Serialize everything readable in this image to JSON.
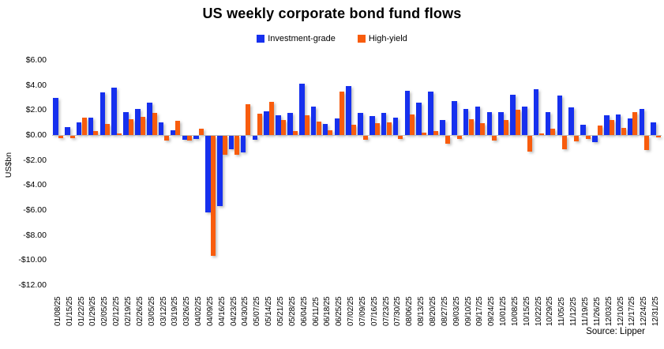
{
  "chart_data": {
    "type": "bar",
    "title": "US weekly corporate bond fund flows",
    "ylabel": "US$bn",
    "source": "Source: Lipper",
    "legend_position": "top",
    "grid": false,
    "ylim": [
      -12,
      6
    ],
    "ytick_step": 2,
    "yticks": [
      {
        "value": 6,
        "label": "$6.00"
      },
      {
        "value": 4,
        "label": "$4.00"
      },
      {
        "value": 2,
        "label": "$2.00"
      },
      {
        "value": 0,
        "label": "$0.00"
      },
      {
        "value": -2,
        "label": "-$2.00"
      },
      {
        "value": -4,
        "label": "-$4.00"
      },
      {
        "value": -6,
        "label": "-$6.00"
      },
      {
        "value": -8,
        "label": "-$8.00"
      },
      {
        "value": -10,
        "label": "-$10.00"
      },
      {
        "value": -12,
        "label": "-$12.00"
      }
    ],
    "categories": [
      "01/08/25",
      "01/15/25",
      "01/22/25",
      "01/29/25",
      "02/05/25",
      "02/12/25",
      "02/19/25",
      "02/26/25",
      "03/05/25",
      "03/12/25",
      "03/19/25",
      "03/26/25",
      "04/02/25",
      "04/09/25",
      "04/16/25",
      "04/23/25",
      "04/30/25",
      "05/07/25",
      "05/14/25",
      "05/21/25",
      "05/28/25",
      "06/04/25",
      "06/11/25",
      "06/18/25",
      "06/25/25",
      "07/02/25",
      "07/09/25",
      "07/16/25",
      "07/23/25",
      "07/30/25",
      "08/06/25",
      "08/13/25",
      "08/20/25",
      "08/27/25",
      "09/03/25",
      "09/10/25",
      "09/17/25",
      "09/24/25",
      "10/01/25",
      "10/08/25",
      "10/15/25",
      "10/22/25",
      "10/29/25",
      "11/05/25",
      "11/12/25",
      "11/19/25",
      "11/26/25",
      "12/03/25",
      "12/10/25",
      "12/17/25",
      "12/24/25",
      "12/31/25"
    ],
    "series": [
      {
        "name": "Investment-grade",
        "color": "#1630ee",
        "values": [
          3.0,
          0.65,
          1.0,
          1.4,
          3.4,
          3.8,
          1.85,
          2.1,
          2.6,
          1.0,
          0.4,
          -0.3,
          -0.25,
          -6.1,
          -5.6,
          -1.1,
          -1.3,
          -0.3,
          1.9,
          1.6,
          1.8,
          4.1,
          2.3,
          0.9,
          1.35,
          3.9,
          1.8,
          1.5,
          1.8,
          1.4,
          3.55,
          2.6,
          3.45,
          1.2,
          2.7,
          2.1,
          2.25,
          1.85,
          1.85,
          3.25,
          2.3,
          3.65,
          1.85,
          3.15,
          2.2,
          0.85,
          -0.5,
          1.6,
          1.65,
          1.35,
          2.1,
          1.0
        ]
      },
      {
        "name": "High-yield",
        "color": "#f85c0d",
        "values": [
          -0.2,
          -0.2,
          1.4,
          0.3,
          0.9,
          0.15,
          1.25,
          1.45,
          1.8,
          -0.35,
          1.15,
          -0.35,
          0.5,
          -9.6,
          -1.5,
          -1.5,
          2.45,
          1.7,
          2.65,
          1.2,
          0.3,
          1.55,
          1.1,
          0.4,
          3.45,
          0.85,
          -0.3,
          0.95,
          1.0,
          -0.25,
          1.65,
          0.2,
          0.3,
          -0.6,
          -0.25,
          1.25,
          0.95,
          -0.35,
          1.2,
          2.05,
          -1.25,
          0.15,
          0.5,
          -1.05,
          -0.45,
          -0.25,
          0.75,
          1.2,
          0.6,
          1.85,
          -1.15,
          -0.15
        ]
      }
    ]
  }
}
